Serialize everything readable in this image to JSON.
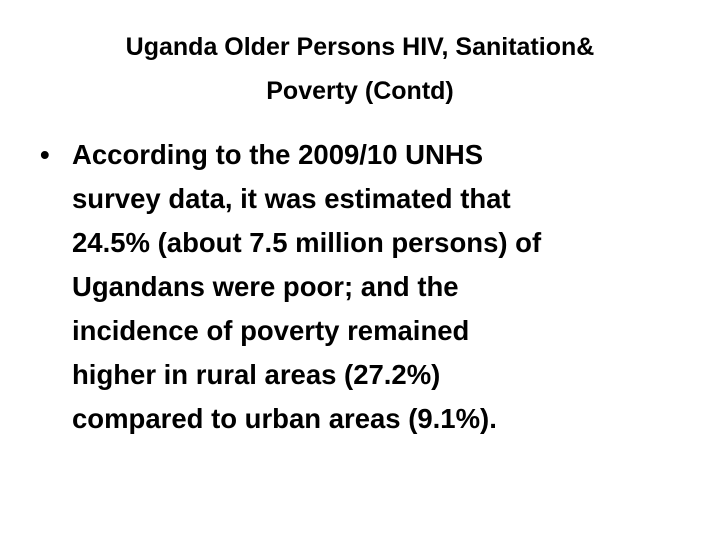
{
  "title": {
    "lines": [
      "Uganda Older Persons HIV, Sanitation&",
      "Poverty (Contd)"
    ]
  },
  "bullets": [
    {
      "lines": [
        "According to the 2009/10 UNHS",
        "survey data, it was estimated that",
        "24.5% (about 7.5 million persons) of",
        "Ugandans were poor; and the",
        "incidence of poverty remained",
        "higher in rural areas (27.2%)",
        "compared to urban areas (9.1%)."
      ]
    }
  ]
}
